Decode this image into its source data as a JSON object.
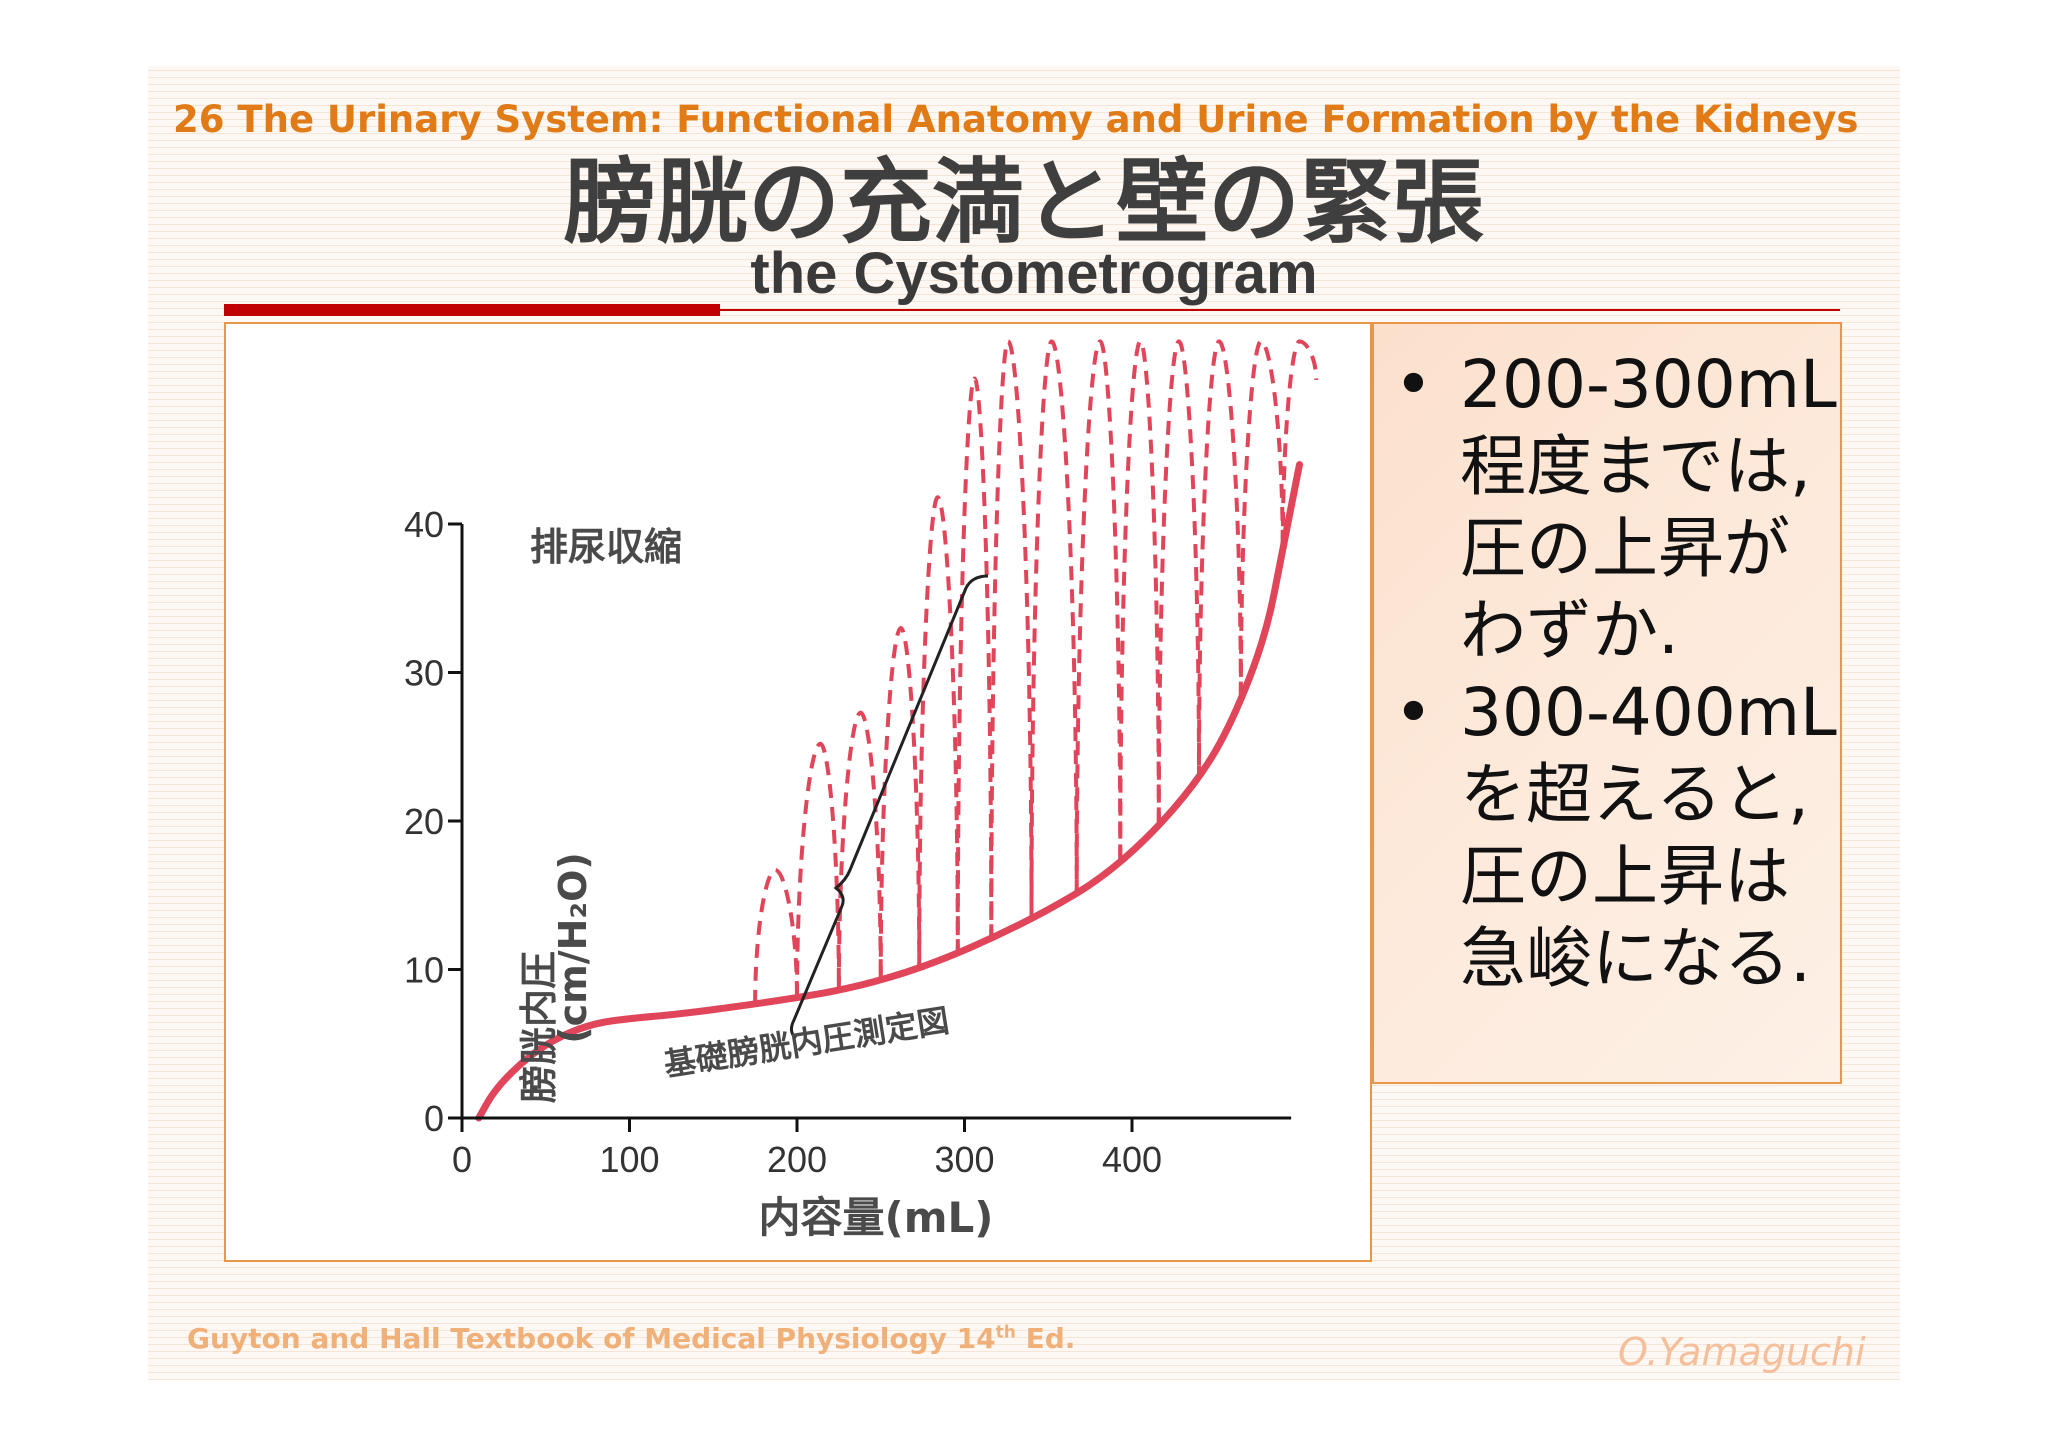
{
  "header": {
    "chapter": "26 The Urinary System: Functional Anatomy and Urine Formation by the Kidneys",
    "title": "膀胱の充満と壁の緊張",
    "subtitle": "the Cystometrogram"
  },
  "bullets": [
    {
      "dot": "•",
      "text": "200-300mL程度までは,圧の上昇がわずか."
    },
    {
      "dot": "•",
      "text": "300-400mLを超えると,圧の上昇は急峻になる."
    }
  ],
  "footer": {
    "citation": "Guyton and Hall Textbook of Medical Physiology 14",
    "citation_sup": "th",
    "citation_end": " Ed.",
    "author": "O.Yamaguchi"
  },
  "chart_data": {
    "type": "line",
    "xlabel": "内容量(mL)",
    "ylabel_line1": "膀胱内圧",
    "ylabel_line2": "(cm/H₂O)",
    "xlim": [
      0,
      500
    ],
    "ylim": [
      0,
      40
    ],
    "xticks": [
      0,
      100,
      200,
      300,
      400
    ],
    "yticks": [
      0,
      10,
      20,
      30,
      40
    ],
    "annotations": {
      "micturition": "排尿収縮",
      "basal": "基礎膀胱内圧測定図"
    },
    "colors": {
      "curve": "#e0455a",
      "axis": "#111111",
      "text": "#4a4a4a"
    },
    "series": [
      {
        "name": "基礎膀胱内圧",
        "style": "solid",
        "points": [
          [
            10,
            0
          ],
          [
            20,
            2
          ],
          [
            40,
            4.2
          ],
          [
            60,
            5.6
          ],
          [
            80,
            6.4
          ],
          [
            100,
            6.7
          ],
          [
            130,
            7
          ],
          [
            170,
            7.6
          ],
          [
            200,
            8.1
          ],
          [
            230,
            8.7
          ],
          [
            260,
            9.6
          ],
          [
            290,
            10.8
          ],
          [
            320,
            12.3
          ],
          [
            350,
            14
          ],
          [
            380,
            16
          ],
          [
            410,
            18.9
          ],
          [
            440,
            22.8
          ],
          [
            460,
            26.7
          ],
          [
            480,
            32.5
          ],
          [
            490,
            38.3
          ],
          [
            500,
            44
          ]
        ]
      },
      {
        "name": "排尿収縮",
        "style": "dashed",
        "waves": [
          {
            "x_start": 175,
            "x_peak": 187,
            "x_end": 200,
            "peak": 16.7
          },
          {
            "x_start": 200,
            "x_peak": 214,
            "x_end": 225,
            "peak": 25.2
          },
          {
            "x_start": 225,
            "x_peak": 238,
            "x_end": 250,
            "peak": 27.3
          },
          {
            "x_start": 250,
            "x_peak": 262,
            "x_end": 273,
            "peak": 33
          },
          {
            "x_start": 273,
            "x_peak": 284,
            "x_end": 296,
            "peak": 41.8
          },
          {
            "x_start": 296,
            "x_peak": 306,
            "x_end": 316,
            "peak": 49.8
          },
          {
            "x_start": 316,
            "x_peak": 326,
            "x_end": 340,
            "peak": 52.3
          },
          {
            "x_start": 340,
            "x_peak": 352,
            "x_end": 367,
            "peak": 52.3
          },
          {
            "x_start": 367,
            "x_peak": 381,
            "x_end": 393,
            "peak": 52.3
          },
          {
            "x_start": 393,
            "x_peak": 405,
            "x_end": 416,
            "peak": 52.3
          },
          {
            "x_start": 416,
            "x_peak": 428,
            "x_end": 440,
            "peak": 52.3
          },
          {
            "x_start": 440,
            "x_peak": 452,
            "x_end": 465,
            "peak": 52.3
          },
          {
            "x_start": 465,
            "x_peak": 477,
            "x_end": 490,
            "peak": 52.3
          },
          {
            "x_start": 490,
            "x_peak": 500,
            "x_end": 510,
            "peak": 52.3
          }
        ]
      }
    ]
  }
}
